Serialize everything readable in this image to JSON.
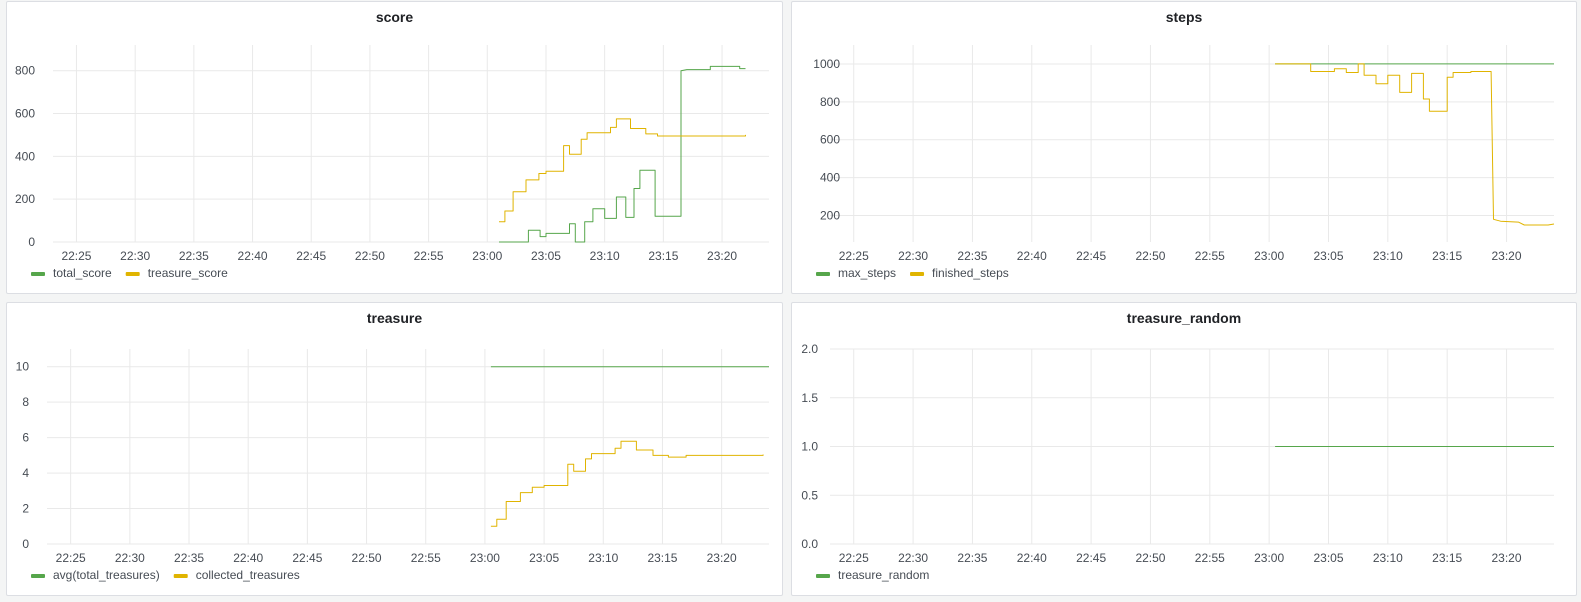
{
  "colors": {
    "green": "#56a64b",
    "yellow": "#e0b400",
    "grid": "#e9e9e9"
  },
  "time_ticks": [
    "22:25",
    "22:30",
    "22:35",
    "22:40",
    "22:45",
    "22:50",
    "22:55",
    "23:00",
    "23:05",
    "23:10",
    "23:15",
    "23:20"
  ],
  "panels": [
    {
      "title": "score"
    },
    {
      "title": "steps"
    },
    {
      "title": "treasure"
    },
    {
      "title": "treasure_random"
    }
  ],
  "chart_data": [
    {
      "type": "line",
      "title": "score",
      "x_unit": "time (hh:mm)",
      "xlim": [
        "22:23",
        "23:24"
      ],
      "ylim": [
        0,
        920
      ],
      "yticks": [
        "0",
        "200",
        "400",
        "600",
        "800"
      ],
      "legend_position": "bottom-left",
      "series": [
        {
          "name": "total_score",
          "color": "#56a64b",
          "points": [
            [
              "23:01",
              0
            ],
            [
              "23:03.5",
              0
            ],
            [
              "23:03.5",
              55
            ],
            [
              "23:04.5",
              55
            ],
            [
              "23:04.5",
              25
            ],
            [
              "23:05",
              25
            ],
            [
              "23:05",
              40
            ],
            [
              "23:07",
              40
            ],
            [
              "23:07",
              85
            ],
            [
              "23:07.5",
              85
            ],
            [
              "23:07.5",
              0
            ],
            [
              "23:08.3",
              0
            ],
            [
              "23:08.3",
              95
            ],
            [
              "23:09",
              95
            ],
            [
              "23:09",
              155
            ],
            [
              "23:10",
              155
            ],
            [
              "23:10",
              110
            ],
            [
              "23:11",
              110
            ],
            [
              "23:11",
              210
            ],
            [
              "23:11.8",
              210
            ],
            [
              "23:11.8",
              115
            ],
            [
              "23:12.5",
              115
            ],
            [
              "23:12.5",
              250
            ],
            [
              "23:13",
              250
            ],
            [
              "23:13",
              335
            ],
            [
              "23:14.3",
              335
            ],
            [
              "23:14.3",
              120
            ],
            [
              "23:16.5",
              120
            ],
            [
              "23:16.5",
              800
            ],
            [
              "23:17",
              805
            ],
            [
              "23:19",
              805
            ],
            [
              "23:19",
              820
            ],
            [
              "23:21.5",
              820
            ],
            [
              "23:21.5",
              810
            ],
            [
              "23:22",
              810
            ]
          ]
        },
        {
          "name": "treasure_score",
          "color": "#e0b400",
          "points": [
            [
              "23:01",
              95
            ],
            [
              "23:01.5",
              95
            ],
            [
              "23:01.5",
              145
            ],
            [
              "23:02.2",
              145
            ],
            [
              "23:02.2",
              235
            ],
            [
              "23:03.3",
              235
            ],
            [
              "23:03.3",
              290
            ],
            [
              "23:04.4",
              290
            ],
            [
              "23:04.4",
              320
            ],
            [
              "23:05",
              320
            ],
            [
              "23:05",
              330
            ],
            [
              "23:06.5",
              330
            ],
            [
              "23:06.5",
              450
            ],
            [
              "23:07",
              450
            ],
            [
              "23:07",
              410
            ],
            [
              "23:08",
              410
            ],
            [
              "23:08",
              480
            ],
            [
              "23:08.5",
              480
            ],
            [
              "23:08.5",
              510
            ],
            [
              "23:10.5",
              510
            ],
            [
              "23:10.5",
              535
            ],
            [
              "23:11",
              535
            ],
            [
              "23:11",
              575
            ],
            [
              "23:12.2",
              575
            ],
            [
              "23:12.2",
              530
            ],
            [
              "23:13.5",
              530
            ],
            [
              "23:13.5",
              505
            ],
            [
              "23:14.5",
              505
            ],
            [
              "23:14.5",
              495
            ],
            [
              "23:22",
              495
            ],
            [
              "23:22",
              500
            ]
          ]
        }
      ]
    },
    {
      "type": "line",
      "title": "steps",
      "x_unit": "time (hh:mm)",
      "xlim": [
        "22:23",
        "23:24"
      ],
      "ylim": [
        60,
        1100
      ],
      "yticks": [
        "200",
        "400",
        "600",
        "800",
        "1000"
      ],
      "legend_position": "bottom-left",
      "series": [
        {
          "name": "max_steps",
          "color": "#56a64b",
          "points": [
            [
              "23:00.5",
              1000
            ],
            [
              "23:24",
              1000
            ]
          ]
        },
        {
          "name": "finished_steps",
          "color": "#e0b400",
          "points": [
            [
              "23:00.5",
              1000
            ],
            [
              "23:03.5",
              1000
            ],
            [
              "23:03.5",
              960
            ],
            [
              "23:05.5",
              960
            ],
            [
              "23:05.5",
              975
            ],
            [
              "23:06.5",
              975
            ],
            [
              "23:06.5",
              955
            ],
            [
              "23:07.5",
              955
            ],
            [
              "23:07.5",
              1000
            ],
            [
              "23:08",
              1000
            ],
            [
              "23:08",
              940
            ],
            [
              "23:09",
              940
            ],
            [
              "23:09",
              895
            ],
            [
              "23:10",
              895
            ],
            [
              "23:10",
              940
            ],
            [
              "23:11",
              940
            ],
            [
              "23:11",
              850
            ],
            [
              "23:12",
              850
            ],
            [
              "23:12",
              950
            ],
            [
              "23:13",
              950
            ],
            [
              "23:13",
              815
            ],
            [
              "23:13.5",
              815
            ],
            [
              "23:13.5",
              750
            ],
            [
              "23:15",
              750
            ],
            [
              "23:15",
              930
            ],
            [
              "23:15.5",
              930
            ],
            [
              "23:15.5",
              955
            ],
            [
              "23:17",
              955
            ],
            [
              "23:17",
              960
            ],
            [
              "23:18.7",
              960
            ],
            [
              "23:18.9",
              180
            ],
            [
              "23:19.5",
              170
            ],
            [
              "23:21",
              165
            ],
            [
              "23:21.5",
              150
            ],
            [
              "23:23.5",
              150
            ],
            [
              "23:24",
              155
            ]
          ]
        }
      ]
    },
    {
      "type": "line",
      "title": "treasure",
      "x_unit": "time (hh:mm)",
      "xlim": [
        "22:23",
        "23:24"
      ],
      "ylim": [
        0,
        11
      ],
      "yticks": [
        "0",
        "2",
        "4",
        "6",
        "8",
        "10"
      ],
      "legend_position": "bottom-left",
      "series": [
        {
          "name": "avg(total_treasures)",
          "color": "#56a64b",
          "points": [
            [
              "23:00.5",
              10
            ],
            [
              "23:24",
              10
            ]
          ]
        },
        {
          "name": "collected_treasures",
          "color": "#e0b400",
          "points": [
            [
              "23:00.5",
              1
            ],
            [
              "23:01",
              1
            ],
            [
              "23:01",
              1.4
            ],
            [
              "23:01.8",
              1.4
            ],
            [
              "23:01.8",
              2.4
            ],
            [
              "23:03",
              2.4
            ],
            [
              "23:03",
              2.9
            ],
            [
              "23:04",
              2.9
            ],
            [
              "23:04",
              3.2
            ],
            [
              "23:05",
              3.2
            ],
            [
              "23:05",
              3.3
            ],
            [
              "23:07",
              3.3
            ],
            [
              "23:07",
              4.5
            ],
            [
              "23:07.5",
              4.5
            ],
            [
              "23:07.5",
              4.1
            ],
            [
              "23:08.5",
              4.1
            ],
            [
              "23:08.5",
              4.8
            ],
            [
              "23:09",
              4.8
            ],
            [
              "23:09",
              5.1
            ],
            [
              "23:11",
              5.1
            ],
            [
              "23:11",
              5.4
            ],
            [
              "23:11.5",
              5.4
            ],
            [
              "23:11.5",
              5.8
            ],
            [
              "23:12.8",
              5.8
            ],
            [
              "23:12.8",
              5.3
            ],
            [
              "23:14.2",
              5.3
            ],
            [
              "23:14.2",
              5.0
            ],
            [
              "23:15.5",
              5.0
            ],
            [
              "23:15.5",
              4.9
            ],
            [
              "23:17",
              4.9
            ],
            [
              "23:17",
              5.0
            ],
            [
              "23:23.5",
              5.0
            ],
            [
              "23:23.5",
              5.05
            ]
          ]
        }
      ]
    },
    {
      "type": "line",
      "title": "treasure_random",
      "x_unit": "time (hh:mm)",
      "xlim": [
        "22:23",
        "23:24"
      ],
      "ylim": [
        0,
        2
      ],
      "yticks": [
        "0.0",
        "0.5",
        "1.0",
        "1.5",
        "2.0"
      ],
      "legend_position": "bottom-left",
      "series": [
        {
          "name": "treasure_random",
          "color": "#56a64b",
          "points": [
            [
              "23:00.5",
              1
            ],
            [
              "23:24",
              1
            ]
          ]
        }
      ]
    }
  ]
}
